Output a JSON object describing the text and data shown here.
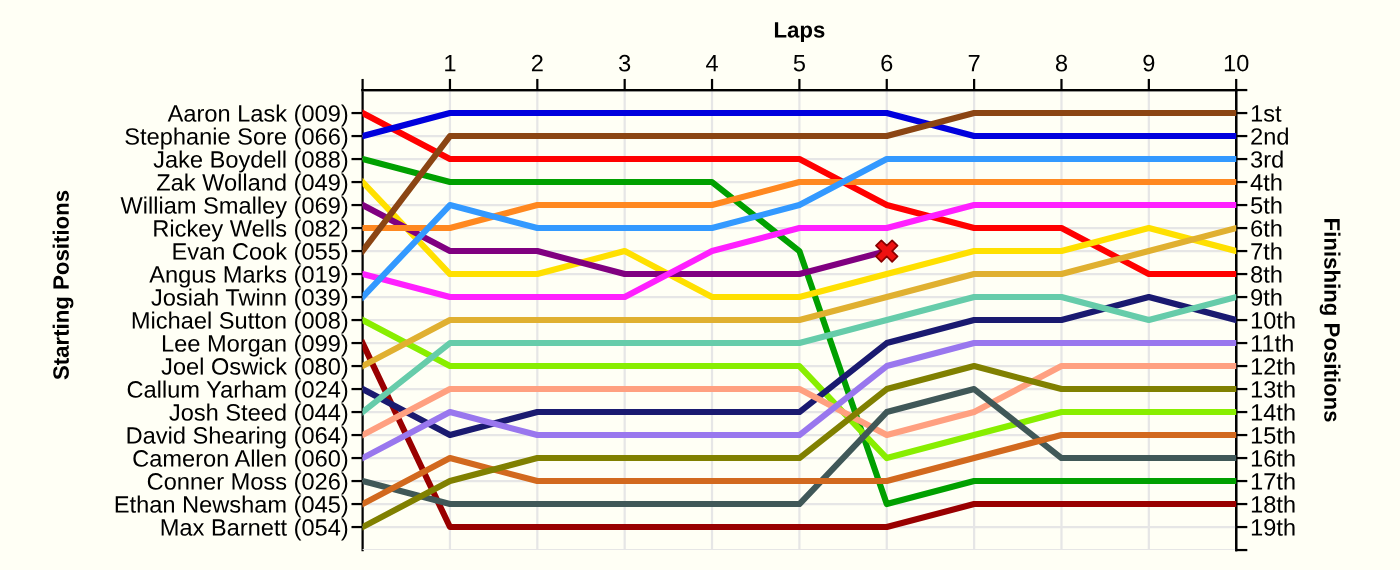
{
  "chart_data": {
    "type": "line",
    "xlabel": "Laps",
    "annotations": [
      "Starting Positions"
    ],
    "y2label": "Finishing Positions",
    "grid": true,
    "marker": "none",
    "line_style": "solid",
    "x": [
      0,
      1,
      2,
      3,
      4,
      5,
      6,
      7,
      8,
      9,
      10
    ],
    "xlim": [
      0,
      10
    ],
    "xticks": [
      {
        "value": 0,
        "label": null
      },
      1,
      2,
      3,
      4,
      5,
      6,
      7,
      8,
      9,
      10
    ],
    "y_categories": [
      "Aaron Lask (009)",
      "Stephanie Sore (066)",
      "Jake Boydell (088)",
      "Zak Wolland (049)",
      "William Smalley (069)",
      "Rickey Wells (082)",
      "Evan Cook (055)",
      "Angus Marks (019)",
      "Josiah Twinn (039)",
      "Michael Sutton (008)",
      "Lee Morgan (099)",
      "Joel Oswick (080)",
      "Callum Yarham (024)",
      "Josh Steed (044)",
      "David Shearing (064)",
      "Cameron Allen (060)",
      "Conner Moss (026)",
      "Ethan Newsham (045)",
      "Max Barnett (054)"
    ],
    "y2lim": [
      20,
      0
    ],
    "y2ticks": [
      {
        "value": 0,
        "label": null
      },
      {
        "value": 1,
        "label": "1st"
      },
      {
        "value": 2,
        "label": "2nd"
      },
      {
        "value": 3,
        "label": "3rd"
      },
      {
        "value": 4,
        "label": "4th"
      },
      {
        "value": 5,
        "label": "5th"
      },
      {
        "value": 6,
        "label": "6th"
      },
      {
        "value": 7,
        "label": "7th"
      },
      {
        "value": 8,
        "label": "8th"
      },
      {
        "value": 9,
        "label": "9th"
      },
      {
        "value": 10,
        "label": "10th"
      },
      {
        "value": 11,
        "label": "11th"
      },
      {
        "value": 12,
        "label": "12th"
      },
      {
        "value": 13,
        "label": "13th"
      },
      {
        "value": 14,
        "label": "14th"
      },
      {
        "value": 15,
        "label": "15th"
      },
      {
        "value": 16,
        "label": "16th"
      },
      {
        "value": 17,
        "label": "17th"
      },
      {
        "value": 18,
        "label": "18th"
      },
      {
        "value": 19,
        "label": "19th"
      },
      {
        "value": 20,
        "label": null
      }
    ],
    "series": [
      {
        "axis": "y2",
        "color": "#ff0000",
        "values": [
          1,
          3,
          3,
          3,
          3,
          3,
          5,
          6,
          6,
          8,
          8
        ]
      },
      {
        "axis": "y2",
        "color": "#0000dd",
        "values": [
          2,
          1,
          1,
          1,
          1,
          1,
          1,
          2,
          2,
          2,
          2
        ]
      },
      {
        "axis": "y2",
        "color": "#00a000",
        "values": [
          3,
          4,
          4,
          4,
          4,
          7,
          18,
          17,
          17,
          17,
          17
        ]
      },
      {
        "axis": "y2",
        "color": "#ffe000",
        "values": [
          4,
          8,
          8,
          7,
          9,
          9,
          8,
          7,
          7,
          6,
          7
        ]
      },
      {
        "axis": "y2",
        "color": "#800080",
        "values": [
          5,
          7,
          7,
          8,
          8,
          8,
          7,
          null,
          null,
          null,
          null
        ]
      },
      {
        "axis": "y2",
        "color": "#ff8820",
        "values": [
          6,
          6,
          5,
          5,
          5,
          4,
          4,
          4,
          4,
          4,
          4
        ]
      },
      {
        "axis": "y2",
        "color": "#8b4513",
        "values": [
          7,
          2,
          2,
          2,
          2,
          2,
          2,
          1,
          1,
          1,
          1
        ]
      },
      {
        "axis": "y2",
        "color": "#ff20ff",
        "values": [
          8,
          9,
          9,
          9,
          7,
          6,
          6,
          5,
          5,
          5,
          5
        ]
      },
      {
        "axis": "y2",
        "color": "#3399ff",
        "values": [
          9,
          5,
          6,
          6,
          6,
          5,
          3,
          3,
          3,
          3,
          3
        ]
      },
      {
        "axis": "y2",
        "color": "#88ee00",
        "values": [
          10,
          12,
          12,
          12,
          12,
          12,
          16,
          15,
          14,
          14,
          14
        ]
      },
      {
        "axis": "y2",
        "color": "#990000",
        "values": [
          11,
          19,
          19,
          19,
          19,
          19,
          19,
          18,
          18,
          18,
          18
        ]
      },
      {
        "axis": "y2",
        "color": "#e0b030",
        "values": [
          12,
          10,
          10,
          10,
          10,
          10,
          9,
          8,
          8,
          7,
          6
        ]
      },
      {
        "axis": "y2",
        "color": "#1a1a70",
        "values": [
          13,
          15,
          14,
          14,
          14,
          14,
          11,
          10,
          10,
          9,
          10
        ]
      },
      {
        "axis": "y2",
        "color": "#66ccaa",
        "values": [
          14,
          11,
          11,
          11,
          11,
          11,
          10,
          9,
          9,
          10,
          9
        ]
      },
      {
        "axis": "y2",
        "color": "#ffa080",
        "values": [
          15,
          13,
          13,
          13,
          13,
          13,
          15,
          14,
          12,
          12,
          12
        ]
      },
      {
        "axis": "y2",
        "color": "#9977ee",
        "values": [
          16,
          14,
          15,
          15,
          15,
          15,
          12,
          11,
          11,
          11,
          11
        ]
      },
      {
        "axis": "y2",
        "color": "#405858",
        "values": [
          17,
          18,
          18,
          18,
          18,
          18,
          14,
          13,
          16,
          16,
          16
        ]
      },
      {
        "axis": "y2",
        "color": "#d2691e",
        "values": [
          18,
          16,
          17,
          17,
          17,
          17,
          17,
          16,
          15,
          15,
          15
        ]
      },
      {
        "axis": "y2",
        "color": "#808000",
        "values": [
          19,
          17,
          16,
          16,
          16,
          16,
          13,
          12,
          13,
          13,
          13
        ]
      },
      {
        "axis": "y2",
        "type": "scatter",
        "marker": "cross",
        "color": "#ee1111",
        "x": [
          6
        ],
        "values": [
          7
        ]
      }
    ]
  }
}
